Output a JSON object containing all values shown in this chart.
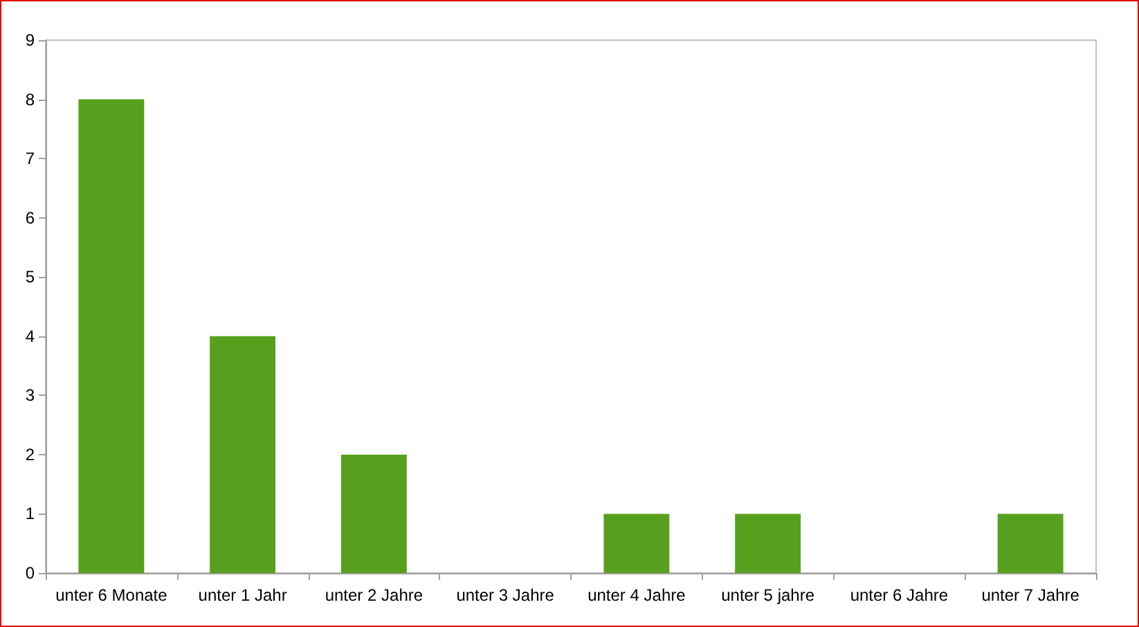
{
  "chart_data": {
    "type": "bar",
    "categories": [
      "unter 6 Monate",
      "unter 1 Jahr",
      "unter 2 Jahre",
      "unter 3 Jahre",
      "unter 4 Jahre",
      "unter 5 jahre",
      "unter 6 Jahre",
      "unter 7 Jahre"
    ],
    "values": [
      8,
      4,
      2,
      0,
      1,
      1,
      0,
      1
    ],
    "color": "#57a01d",
    "ylim": [
      0,
      9
    ],
    "yticks": [
      0,
      1,
      2,
      3,
      4,
      5,
      6,
      7,
      8,
      9
    ],
    "grid": false
  }
}
